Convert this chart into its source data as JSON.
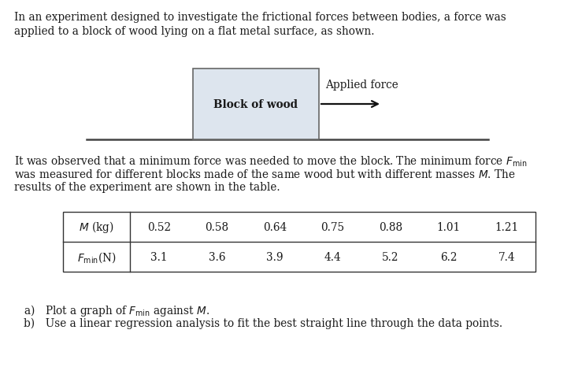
{
  "para1_line1": "In an experiment designed to investigate the frictional forces between bodies, a force was",
  "para1_line2": "applied to a block of wood lying on a flat metal surface, as shown.",
  "block_label": "Block of wood",
  "force_label": "Applied force",
  "para2_line1a": "It was observed that a minimum force was needed to move the block. The minimum force ",
  "para2_line1b": "$F_{\\mathrm{min}}$",
  "para2_line2": "was measured for different blocks made of the same wood but with different masses $M$. The",
  "para2_line3": "results of the experiment are shown in the table.",
  "m_header": "$M$ (kg)",
  "f_header": "$F_{\\mathrm{min}}$(N)",
  "m_values": [
    "0.52",
    "0.58",
    "0.64",
    "0.75",
    "0.88",
    "1.01",
    "1.21"
  ],
  "f_values": [
    "3.1",
    "3.6",
    "3.9",
    "4.4",
    "5.2",
    "6.2",
    "7.4"
  ],
  "qa_a": "a) Plot a graph of $F_{\\mathrm{min}}$ against $M$.",
  "qa_b": "b) Use a linear regression analysis to fit the best straight line through the data points.",
  "bg_color": "#ffffff",
  "text_color": "#1a1a1a",
  "box_fill": "#dde5ee",
  "box_edge": "#666666",
  "font_size": 9.8,
  "table_font_size": 9.8
}
